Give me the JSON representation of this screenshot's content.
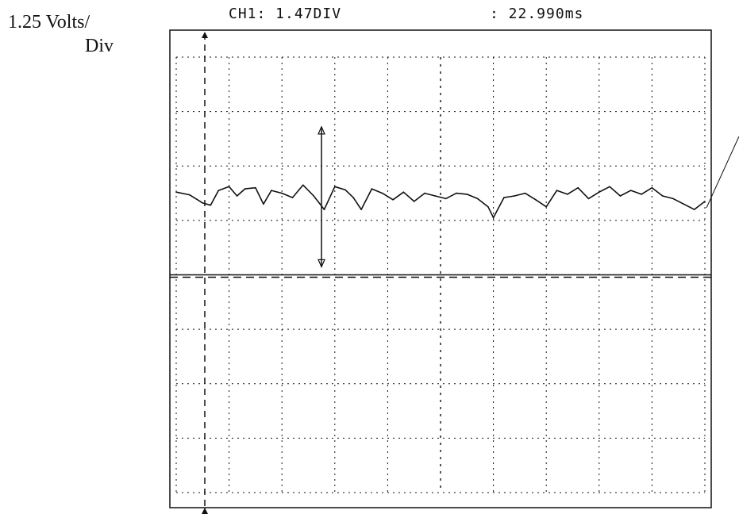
{
  "header": {
    "volts_label_line1": "1.25 Volts/",
    "volts_label_line2": "Div",
    "channel_readout": "CH1: 1.47DIV",
    "time_readout": ": 22.990ms"
  },
  "chart_data": {
    "type": "line",
    "title": "",
    "xlabel": "",
    "ylabel": "",
    "grid": true,
    "xlim": [
      0,
      10
    ],
    "ylim": [
      -4,
      4
    ],
    "x_divisions": 10,
    "y_divisions": 8,
    "trace_color": "#111111",
    "cursor_amplitude_div": 1.47,
    "cursor_time_ms": 22.99,
    "series": [
      {
        "x": [
          0,
          0.25,
          0.5,
          0.65,
          0.8,
          1.0,
          1.15,
          1.3,
          1.5,
          1.65,
          1.8,
          2.0,
          2.2,
          2.4,
          2.6,
          2.8,
          3.0,
          3.2,
          3.35,
          3.5,
          3.7,
          3.9,
          4.1,
          4.3,
          4.5,
          4.7,
          4.9,
          5.1,
          5.3,
          5.5,
          5.7,
          5.9,
          6.0,
          6.2,
          6.4,
          6.6,
          6.8,
          7.0,
          7.2,
          7.4,
          7.6,
          7.8,
          8.0,
          8.2,
          8.4,
          8.6,
          8.8,
          9.0,
          9.2,
          9.4,
          9.6,
          9.8,
          10.0
        ],
        "y": [
          1.52,
          1.47,
          1.32,
          1.28,
          1.55,
          1.62,
          1.45,
          1.58,
          1.6,
          1.3,
          1.55,
          1.5,
          1.42,
          1.65,
          1.45,
          1.2,
          1.62,
          1.56,
          1.42,
          1.2,
          1.58,
          1.5,
          1.38,
          1.52,
          1.35,
          1.5,
          1.45,
          1.4,
          1.5,
          1.48,
          1.4,
          1.25,
          1.05,
          1.42,
          1.45,
          1.5,
          1.38,
          1.25,
          1.55,
          1.48,
          1.6,
          1.4,
          1.52,
          1.62,
          1.45,
          1.55,
          1.48,
          1.6,
          1.45,
          1.4,
          1.3,
          1.2,
          1.35
        ]
      }
    ]
  }
}
